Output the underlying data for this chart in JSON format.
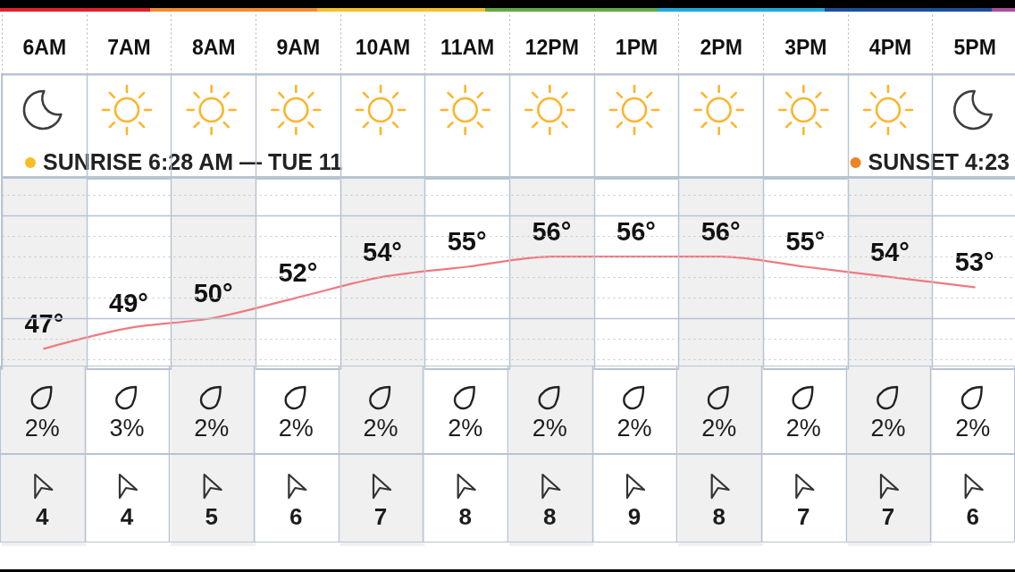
{
  "chart_data": [
    {
      "type": "line",
      "categories": [
        "6AM",
        "7AM",
        "8AM",
        "9AM",
        "10AM",
        "11AM",
        "12PM",
        "1PM",
        "2PM",
        "3PM",
        "4PM",
        "5PM"
      ],
      "values": [
        47,
        49,
        50,
        52,
        54,
        55,
        56,
        56,
        56,
        55,
        54,
        53
      ],
      "color": "#ef7a80",
      "value_labels": [
        "47°",
        "49°",
        "50°",
        "52°",
        "54°",
        "55°",
        "56°",
        "56°",
        "56°",
        "55°",
        "54°",
        "53°"
      ],
      "ylim": [
        45,
        63.6
      ],
      "grid": true,
      "tick_labels": "x",
      "bands": [
        {
          "axis": "x",
          "from": "6AM",
          "to": "6AM",
          "color": "#f0f0f0"
        },
        {
          "axis": "x",
          "from": "8AM",
          "to": "8AM",
          "color": "#f0f0f0"
        },
        {
          "axis": "x",
          "from": "10AM",
          "to": "10AM",
          "color": "#f0f0f0"
        },
        {
          "axis": "x",
          "from": "12PM",
          "to": "12PM",
          "color": "#f0f0f0"
        },
        {
          "axis": "x",
          "from": "2PM",
          "to": "2PM",
          "color": "#f0f0f0"
        },
        {
          "axis": "x",
          "from": "4PM",
          "to": "4PM",
          "color": "#f0f0f0"
        }
      ],
      "annotations": [
        "SUNRISE 6:28 AM — TUE 11",
        "SUNSET 4:23"
      ]
    },
    {
      "type": "other",
      "categories": [
        null,
        null,
        null,
        null,
        null,
        null,
        null,
        null,
        null,
        null,
        null,
        null
      ],
      "values": [
        2,
        3,
        2,
        2,
        2,
        2,
        2,
        2,
        2,
        2,
        2,
        2
      ],
      "value_labels": [
        "2%",
        "3%",
        "2%",
        "2%",
        "2%",
        "2%",
        "2%",
        "2%",
        "2%",
        "2%",
        "2%",
        "2%"
      ]
    },
    {
      "type": "other",
      "categories": [
        null,
        null,
        null,
        null,
        null,
        null,
        null,
        null,
        null,
        null,
        null,
        null
      ],
      "values": [
        4,
        4,
        5,
        6,
        7,
        8,
        8,
        9,
        8,
        7,
        7,
        6
      ],
      "data_labels": true
    }
  ]
}
